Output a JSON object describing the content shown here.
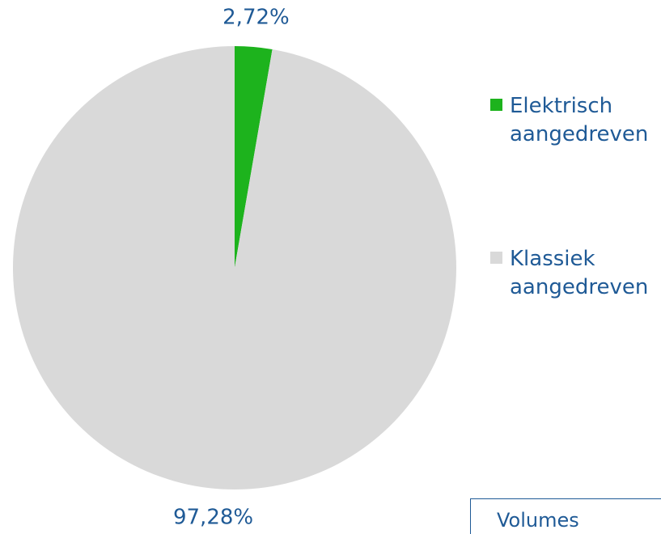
{
  "chart_data": {
    "type": "pie",
    "categories": [
      "Elektrisch aangedreven",
      "Klassiek aangedreven"
    ],
    "values": [
      2.72,
      97.28
    ],
    "value_labels": [
      "2,72%",
      "97,28%"
    ],
    "colors": [
      "#1db31d",
      "#d9d9d9"
    ],
    "legend": "right",
    "annotation": "Volumes"
  }
}
